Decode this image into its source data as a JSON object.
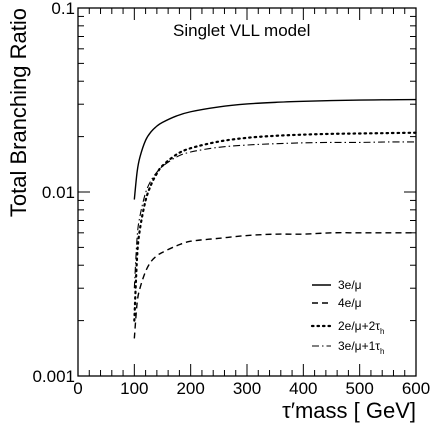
{
  "chart_data": {
    "type": "line",
    "title": "Singlet VLL model",
    "xlabel": "τ′mass [ GeV]",
    "ylabel": "Total Branching Ratio",
    "xlim": [
      0,
      600
    ],
    "ylim": [
      0.001,
      0.1
    ],
    "yscale": "log",
    "grid": false,
    "legend_position": "bottom-right",
    "x_ticks": [
      "0",
      "100",
      "200",
      "300",
      "400",
      "500",
      "600"
    ],
    "y_ticks": [
      "0.1",
      "0.01",
      "0.001"
    ],
    "x": [
      100,
      105,
      110,
      120,
      130,
      140,
      150,
      175,
      200,
      250,
      300,
      350,
      400,
      450,
      500,
      550,
      600
    ],
    "series": [
      {
        "name": "3e/μ",
        "name_parts": [
          "3e/μ",
          ""
        ],
        "style": "solid",
        "values": [
          0.0091,
          0.0129,
          0.0155,
          0.0191,
          0.0213,
          0.0228,
          0.0239,
          0.0259,
          0.0273,
          0.029,
          0.0301,
          0.0307,
          0.0311,
          0.0314,
          0.0316,
          0.0317,
          0.0318
        ]
      },
      {
        "name": "4e/μ",
        "name_parts": [
          "4e/μ",
          ""
        ],
        "style": "dashed",
        "values": [
          0.0016,
          0.0025,
          0.003,
          0.0037,
          0.0042,
          0.0045,
          0.0047,
          0.0051,
          0.0054,
          0.0056,
          0.0058,
          0.0059,
          0.0059,
          0.006,
          0.006,
          0.006,
          0.006
        ]
      },
      {
        "name": "2e/μ+2τh",
        "name_parts": [
          "2e/μ+2τ",
          "h"
        ],
        "style": "dotted",
        "values": [
          0.002,
          0.0045,
          0.0063,
          0.009,
          0.011,
          0.0126,
          0.0139,
          0.016,
          0.0173,
          0.0188,
          0.0197,
          0.0202,
          0.0205,
          0.0207,
          0.0208,
          0.0209,
          0.021
        ]
      },
      {
        "name": "3e/μ+1τh",
        "name_parts": [
          "3e/μ+1τ",
          "h"
        ],
        "style": "dashdot",
        "values": [
          0.003,
          0.0057,
          0.0074,
          0.0099,
          0.0116,
          0.0128,
          0.0138,
          0.0155,
          0.0165,
          0.0175,
          0.018,
          0.0183,
          0.0185,
          0.0186,
          0.0186,
          0.0187,
          0.0187
        ]
      }
    ]
  }
}
